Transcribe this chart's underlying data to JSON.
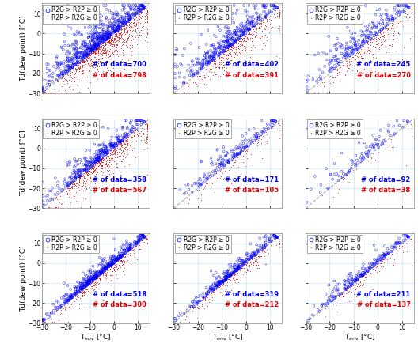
{
  "subplot_data": [
    {
      "blue_n": 700,
      "red_n": 798,
      "row": 0,
      "col": 0
    },
    {
      "blue_n": 402,
      "red_n": 391,
      "row": 0,
      "col": 1
    },
    {
      "blue_n": 245,
      "red_n": 270,
      "row": 0,
      "col": 2
    },
    {
      "blue_n": 358,
      "red_n": 567,
      "row": 1,
      "col": 0
    },
    {
      "blue_n": 171,
      "red_n": 105,
      "row": 1,
      "col": 1
    },
    {
      "blue_n": 92,
      "red_n": 38,
      "row": 1,
      "col": 2
    },
    {
      "blue_n": 518,
      "red_n": 300,
      "row": 2,
      "col": 0
    },
    {
      "blue_n": 319,
      "red_n": 212,
      "row": 2,
      "col": 1
    },
    {
      "blue_n": 211,
      "red_n": 137,
      "row": 2,
      "col": 2
    }
  ],
  "xlim": [
    -30,
    15
  ],
  "ylim": [
    -30,
    15
  ],
  "xticks": [
    -30,
    -20,
    -10,
    0,
    10
  ],
  "yticks": [
    -30,
    -20,
    -10,
    0,
    10
  ],
  "xlabel": "T$_{env}$ [°C]",
  "ylabel_rows": [
    "Td(dew point) [°C]",
    "Td(dew point) [°C]",
    "Td(dew point) [°C]"
  ],
  "legend_blue_label": "R2G > R2P ≥ 0",
  "legend_red_label": "R2P > R2G ≥ 0",
  "blue_color": "#0000EE",
  "red_color": "#DD0000",
  "diag_color": "#AAAAAA",
  "grid_color": "#C8E8FF",
  "background_color": "#FFFFFF",
  "tick_fontsize": 5.5,
  "label_fontsize": 6.5,
  "legend_fontsize": 5.5,
  "count_fontsize": 6.0,
  "spread_by_row": [
    {
      "blue_perp_std": 4.5,
      "red_perp_std": 5.0,
      "diag_std": 10
    },
    {
      "blue_perp_std": 3.0,
      "red_perp_std": 4.0,
      "diag_std": 10
    },
    {
      "blue_perp_std": 1.8,
      "red_perp_std": 2.5,
      "diag_std": 10
    }
  ]
}
